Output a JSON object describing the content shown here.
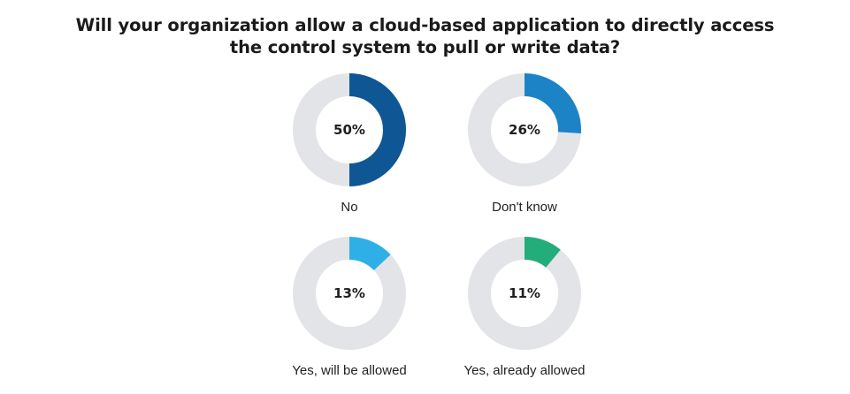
{
  "chart_data": {
    "type": "pie",
    "variant": "donut",
    "title_lines": [
      "Will your organization allow a cloud-based application to directly access",
      "the control system to pull or write data?"
    ],
    "unit": "%",
    "track_color": "#e3e4e8",
    "series": [
      {
        "label": "No",
        "value": 50,
        "display": "50%",
        "color": "#0f5794"
      },
      {
        "label": "Don't know",
        "value": 26,
        "display": "26%",
        "color": "#1c84c6"
      },
      {
        "label": "Yes, will be allowed",
        "value": 13,
        "display": "13%",
        "color": "#2eb0e6"
      },
      {
        "label": "Yes, already allowed",
        "value": 11,
        "display": "11%",
        "color": "#23ad7b"
      }
    ]
  }
}
